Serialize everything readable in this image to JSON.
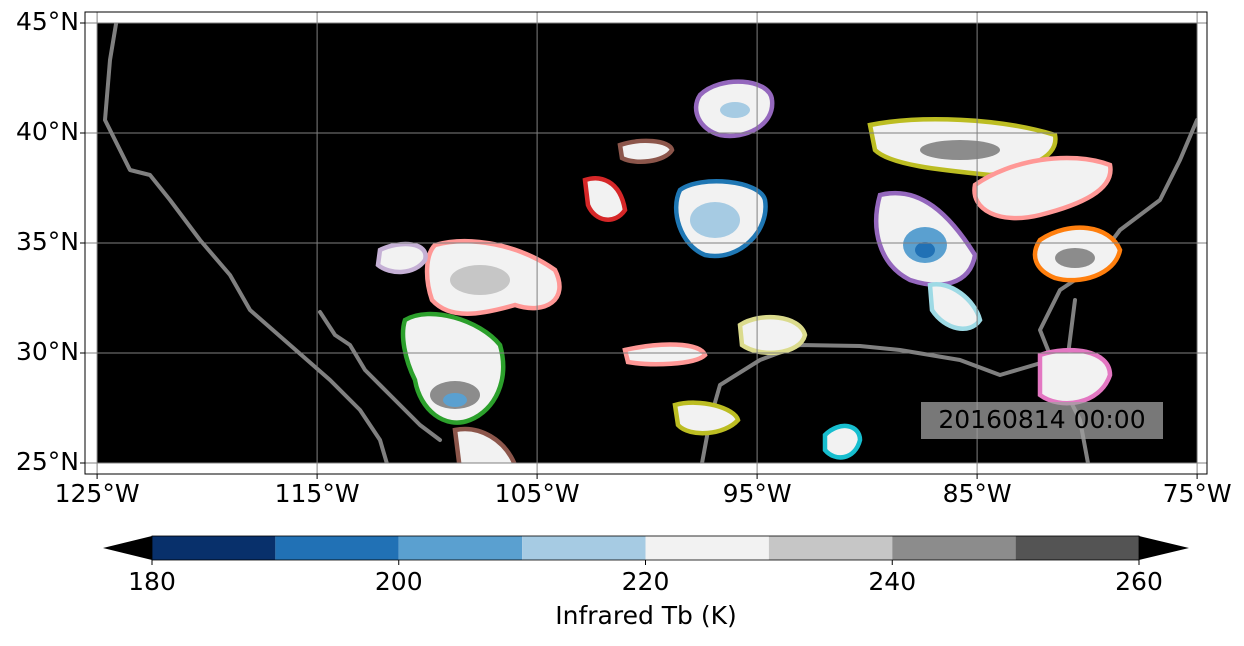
{
  "chart_data": {
    "type": "map",
    "xlim": [
      -125.55,
      -74.55
    ],
    "ylim": [
      24.5,
      45.5
    ],
    "xticks": [
      {
        "value": -125,
        "label": "125°W"
      },
      {
        "value": -115,
        "label": "115°W"
      },
      {
        "value": -105,
        "label": "105°W"
      },
      {
        "value": -95,
        "label": "95°W"
      },
      {
        "value": -85,
        "label": "85°W"
      },
      {
        "value": -75,
        "label": "75°W"
      }
    ],
    "yticks": [
      {
        "value": 25,
        "label": "25°N"
      },
      {
        "value": 30,
        "label": "30°N"
      },
      {
        "value": 35,
        "label": "35°N"
      },
      {
        "value": 40,
        "label": "40°N"
      },
      {
        "value": 45,
        "label": "45°N"
      }
    ],
    "grid": true,
    "annotation": "20160814 00:00",
    "colorbar": {
      "label": "Infrared Tb (K)",
      "levels": [
        180,
        190,
        200,
        210,
        220,
        230,
        240,
        250,
        260
      ],
      "colors": [
        "#08306b",
        "#2171b5",
        "#5aa0d0",
        "#a6cbe3",
        "#f2f2f2",
        "#c6c6c6",
        "#8c8c8c",
        "#545454"
      ],
      "extend_color": "#000000",
      "ticks": [
        180,
        200,
        220,
        240,
        260
      ]
    }
  }
}
